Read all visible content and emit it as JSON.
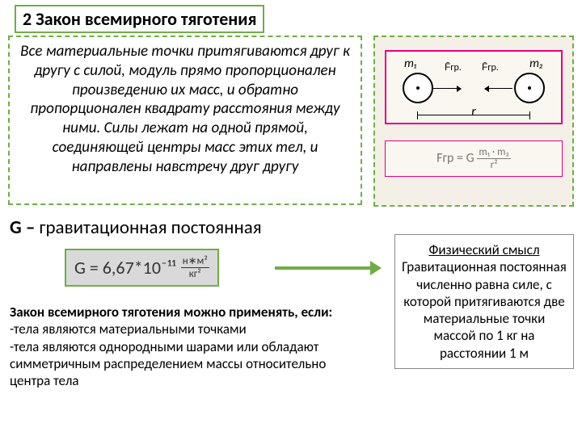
{
  "title": "2 Закон всемирного тяготения",
  "law_text": "Все материальные точки притягиваются друг к другу с силой, модуль прямо пропорционален произведению их масс, и обратно пропорционален квадрату расстояния между ними. Силы лежат на одной прямой, соединяющей центры масс этих тел, и направлены навстречу друг другу",
  "diagram": {
    "m1": "m₁",
    "m2": "m₂",
    "f1": "F̄гр.",
    "f2": "F̄гр.",
    "r": "r",
    "formula_left": "Fгр = G",
    "formula_num": "m₁ · m₂",
    "formula_den": "r²"
  },
  "g_label": "G – ",
  "g_text": "гравитационная постоянная",
  "g_value": "G = 6,67*10⁻¹¹",
  "g_units_num": "н∗м²",
  "g_units_den": "кг²",
  "applicability": {
    "header": "Закон всемирного тяготения можно применять, если:",
    "items": [
      "-тела являются материальными точками",
      "-тела являются однородными шарами или обладают симметричным распределением массы относительно центра тела"
    ]
  },
  "phys": {
    "title": "Физический смысл",
    "body": "Гравитационная постоянная численно равна силе, с которой притягиваются две материальные точки массой по 1 кг на расстоянии 1 м"
  },
  "colors": {
    "accent": "#70ad47",
    "magenta": "#e6007e",
    "grey_box": "#d9d9d9"
  }
}
